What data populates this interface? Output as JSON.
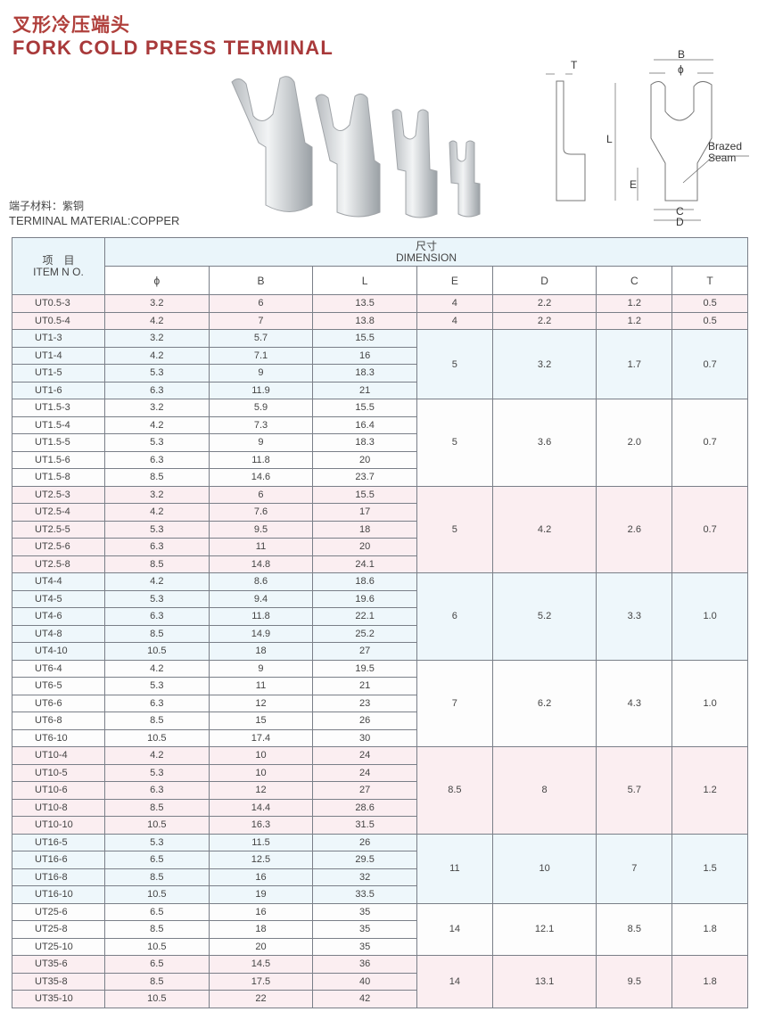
{
  "title_cn": "叉形冷压端头",
  "title_en": "FORK COLD PRESS TERMINAL",
  "material_cn": "端子材料：紫铜",
  "material_en": "TERMINAL MATERIAL:COPPER",
  "drawing": {
    "labels": {
      "T": "T",
      "B": "B",
      "phi": "ϕ",
      "L": "L",
      "E": "E",
      "C": "C",
      "D": "D",
      "brazed": "Brazed",
      "seam": "Seam"
    }
  },
  "colors": {
    "title": "#a8393a",
    "pink_row": "#fbeef1",
    "blue_row": "#eef7fb",
    "border": "#7a7f88"
  },
  "table": {
    "item_cn": "项　目",
    "item_en": "ITEM N O.",
    "dim_cn": "尺寸",
    "dim_en": "DIMENSION",
    "columns": [
      "ϕ",
      "B",
      "L",
      "E",
      "D",
      "C",
      "T"
    ],
    "groups": [
      {
        "tint": "pink",
        "E": "4",
        "D": "2.2",
        "C": "1.2",
        "T": "0.5",
        "rows": [
          [
            "UT0.5-3",
            "3.2",
            "6",
            "13.5"
          ]
        ]
      },
      {
        "tint": "pink",
        "E": "4",
        "D": "2.2",
        "C": "1.2",
        "T": "0.5",
        "rows": [
          [
            "UT0.5-4",
            "4.2",
            "7",
            "13.8"
          ]
        ]
      },
      {
        "tint": "blue",
        "E": "5",
        "D": "3.2",
        "C": "1.7",
        "T": "0.7",
        "rows": [
          [
            "UT1-3",
            "3.2",
            "5.7",
            "15.5"
          ],
          [
            "UT1-4",
            "4.2",
            "7.1",
            "16"
          ],
          [
            "UT1-5",
            "5.3",
            "9",
            "18.3"
          ],
          [
            "UT1-6",
            "6.3",
            "11.9",
            "21"
          ]
        ]
      },
      {
        "tint": "white",
        "E": "5",
        "D": "3.6",
        "C": "2.0",
        "T": "0.7",
        "rows": [
          [
            "UT1.5-3",
            "3.2",
            "5.9",
            "15.5"
          ],
          [
            "UT1.5-4",
            "4.2",
            "7.3",
            "16.4"
          ],
          [
            "UT1.5-5",
            "5.3",
            "9",
            "18.3"
          ],
          [
            "UT1.5-6",
            "6.3",
            "11.8",
            "20"
          ],
          [
            "UT1.5-8",
            "8.5",
            "14.6",
            "23.7"
          ]
        ]
      },
      {
        "tint": "pink",
        "E": "5",
        "D": "4.2",
        "C": "2.6",
        "T": "0.7",
        "rows": [
          [
            "UT2.5-3",
            "3.2",
            "6",
            "15.5"
          ],
          [
            "UT2.5-4",
            "4.2",
            "7.6",
            "17"
          ],
          [
            "UT2.5-5",
            "5.3",
            "9.5",
            "18"
          ],
          [
            "UT2.5-6",
            "6.3",
            "11",
            "20"
          ],
          [
            "UT2.5-8",
            "8.5",
            "14.8",
            "24.1"
          ]
        ]
      },
      {
        "tint": "blue",
        "E": "6",
        "D": "5.2",
        "C": "3.3",
        "T": "1.0",
        "rows": [
          [
            "UT4-4",
            "4.2",
            "8.6",
            "18.6"
          ],
          [
            "UT4-5",
            "5.3",
            "9.4",
            "19.6"
          ],
          [
            "UT4-6",
            "6.3",
            "11.8",
            "22.1"
          ],
          [
            "UT4-8",
            "8.5",
            "14.9",
            "25.2"
          ],
          [
            "UT4-10",
            "10.5",
            "18",
            "27"
          ]
        ]
      },
      {
        "tint": "white",
        "E": "7",
        "D": "6.2",
        "C": "4.3",
        "T": "1.0",
        "rows": [
          [
            "UT6-4",
            "4.2",
            "9",
            "19.5"
          ],
          [
            "UT6-5",
            "5.3",
            "11",
            "21"
          ],
          [
            "UT6-6",
            "6.3",
            "12",
            "23"
          ],
          [
            "UT6-8",
            "8.5",
            "15",
            "26"
          ],
          [
            "UT6-10",
            "10.5",
            "17.4",
            "30"
          ]
        ]
      },
      {
        "tint": "pink",
        "E": "8.5",
        "D": "8",
        "C": "5.7",
        "T": "1.2",
        "rows": [
          [
            "UT10-4",
            "4.2",
            "10",
            "24"
          ],
          [
            "UT10-5",
            "5.3",
            "10",
            "24"
          ],
          [
            "UT10-6",
            "6.3",
            "12",
            "27"
          ],
          [
            "UT10-8",
            "8.5",
            "14.4",
            "28.6"
          ],
          [
            "UT10-10",
            "10.5",
            "16.3",
            "31.5"
          ]
        ]
      },
      {
        "tint": "blue",
        "E": "11",
        "D": "10",
        "C": "7",
        "T": "1.5",
        "rows": [
          [
            "UT16-5",
            "5.3",
            "11.5",
            "26"
          ],
          [
            "UT16-6",
            "6.5",
            "12.5",
            "29.5"
          ],
          [
            "UT16-8",
            "8.5",
            "16",
            "32"
          ],
          [
            "UT16-10",
            "10.5",
            "19",
            "33.5"
          ]
        ]
      },
      {
        "tint": "white",
        "E": "14",
        "D": "12.1",
        "C": "8.5",
        "T": "1.8",
        "rows": [
          [
            "UT25-6",
            "6.5",
            "16",
            "35"
          ],
          [
            "UT25-8",
            "8.5",
            "18",
            "35"
          ],
          [
            "UT25-10",
            "10.5",
            "20",
            "35"
          ]
        ]
      },
      {
        "tint": "pink",
        "E": "14",
        "D": "13.1",
        "C": "9.5",
        "T": "1.8",
        "rows": [
          [
            "UT35-6",
            "6.5",
            "14.5",
            "36"
          ],
          [
            "UT35-8",
            "8.5",
            "17.5",
            "40"
          ],
          [
            "UT35-10",
            "10.5",
            "22",
            "42"
          ]
        ]
      }
    ]
  }
}
